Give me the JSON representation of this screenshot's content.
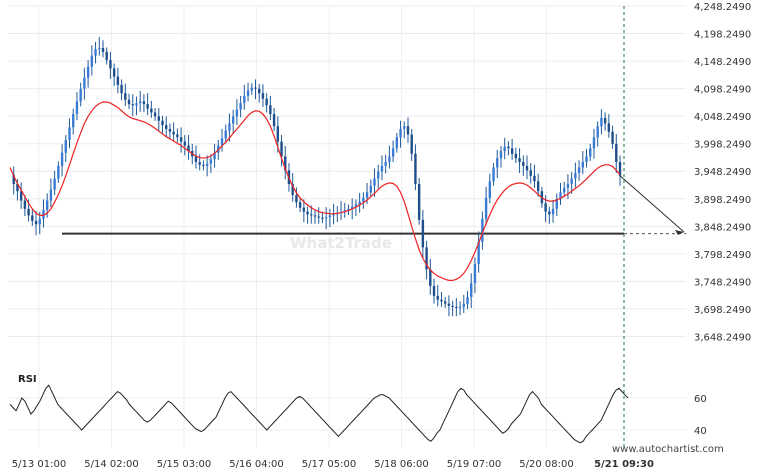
{
  "chart_data": [
    {
      "type": "candlestick",
      "title": "",
      "xlabel": "",
      "ylabel": "",
      "ylim": [
        3618.249,
        4248.249
      ],
      "y_ticks": [
        "4,248.2490",
        "4,198.2490",
        "4,148.2490",
        "4,098.2490",
        "4,048.2490",
        "3,998.2490",
        "3,948.2490",
        "3,898.2490",
        "3,848.2490",
        "3,798.2490",
        "3,748.2490",
        "3,698.2490",
        "3,648.2490"
      ],
      "x_ticks": [
        "5/13 01:00",
        "5/14 02:00",
        "5/15 03:00",
        "5/16 04:00",
        "5/17 05:00",
        "5/18 06:00",
        "5/19 07:00",
        "5/20 08:00"
      ],
      "current_time_label": "5/21 09:30",
      "support_level": 3835,
      "forecast_target": 3838,
      "series": [
        {
          "key": "price",
          "color": "#1f5a99",
          "values": [
            3942,
            3925,
            3912,
            3895,
            3880,
            3868,
            3858,
            3852,
            3862,
            3878,
            3895,
            3915,
            3935,
            3958,
            3982,
            4005,
            4028,
            4052,
            4075,
            4098,
            4118,
            4138,
            4158,
            4170,
            4172,
            4165,
            4150,
            4135,
            4120,
            4105,
            4090,
            4078,
            4070,
            4068,
            4072,
            4075,
            4070,
            4062,
            4055,
            4048,
            4040,
            4032,
            4025,
            4020,
            4015,
            4010,
            4002,
            3995,
            3985,
            3975,
            3965,
            3960,
            3958,
            3962,
            3970,
            3982,
            3995,
            4008,
            4022,
            4035,
            4048,
            4060,
            4072,
            4085,
            4095,
            4100,
            4098,
            4090,
            4080,
            4068,
            4052,
            4030,
            4002,
            3975,
            3950,
            3925,
            3905,
            3892,
            3882,
            3875,
            3870,
            3868,
            3866,
            3864,
            3863,
            3865,
            3868,
            3870,
            3872,
            3874,
            3877,
            3880,
            3884,
            3888,
            3893,
            3900,
            3910,
            3922,
            3935,
            3948,
            3958,
            3965,
            3975,
            3990,
            4010,
            4025,
            4030,
            4015,
            3980,
            3925,
            3860,
            3810,
            3770,
            3740,
            3722,
            3715,
            3712,
            3708,
            3704,
            3702,
            3700,
            3702,
            3707,
            3720,
            3745,
            3780,
            3820,
            3862,
            3900,
            3930,
            3955,
            3972,
            3985,
            3993,
            3990,
            3980,
            3972,
            3965,
            3958,
            3950,
            3940,
            3930,
            3912,
            3890,
            3875,
            3870,
            3880,
            3898,
            3910,
            3918,
            3925,
            3935,
            3945,
            3955,
            3965,
            3975,
            3990,
            4010,
            4030,
            4045,
            4035,
            4020,
            3998,
            3965,
            3940
          ]
        },
        {
          "key": "moving_average",
          "color": "#ee2222",
          "values": [
            3955,
            3940,
            3926,
            3914,
            3902,
            3890,
            3880,
            3872,
            3868,
            3868,
            3872,
            3880,
            3892,
            3906,
            3922,
            3940,
            3960,
            3980,
            4000,
            4018,
            4035,
            4048,
            4058,
            4066,
            4071,
            4074,
            4074,
            4072,
            4068,
            4064,
            4058,
            4052,
            4047,
            4044,
            4042,
            4040,
            4038,
            4035,
            4031,
            4026,
            4021,
            4016,
            4011,
            4007,
            4003,
            3999,
            3995,
            3990,
            3985,
            3980,
            3976,
            3973,
            3972,
            3973,
            3976,
            3981,
            3987,
            3994,
            4001,
            4009,
            4017,
            4025,
            4033,
            4041,
            4049,
            4055,
            4058,
            4057,
            4052,
            4043,
            4030,
            4012,
            3992,
            3972,
            3953,
            3936,
            3921,
            3909,
            3900,
            3893,
            3887,
            3882,
            3878,
            3875,
            3873,
            3872,
            3871,
            3871,
            3872,
            3873,
            3875,
            3877,
            3880,
            3883,
            3887,
            3891,
            3896,
            3902,
            3908,
            3915,
            3921,
            3925,
            3927,
            3926,
            3921,
            3910,
            3893,
            3871,
            3848,
            3826,
            3806,
            3790,
            3778,
            3769,
            3763,
            3758,
            3755,
            3752,
            3750,
            3750,
            3752,
            3756,
            3763,
            3773,
            3786,
            3801,
            3818,
            3836,
            3853,
            3869,
            3884,
            3896,
            3906,
            3914,
            3920,
            3924,
            3926,
            3927,
            3926,
            3923,
            3918,
            3912,
            3906,
            3900,
            3896,
            3894,
            3894,
            3896,
            3899,
            3903,
            3907,
            3912,
            3917,
            3922,
            3928,
            3934,
            3941,
            3948,
            3954,
            3958,
            3960,
            3960,
            3957,
            3950,
            3942
          ]
        }
      ]
    },
    {
      "type": "line",
      "title": "RSI",
      "ylim": [
        30,
        70
      ],
      "y_ticks": [
        "60",
        "40"
      ],
      "series": [
        {
          "key": "rsi",
          "color": "#222222",
          "values": [
            56,
            54,
            52,
            56,
            60,
            58,
            54,
            50,
            52,
            55,
            58,
            62,
            66,
            68,
            64,
            60,
            56,
            54,
            52,
            50,
            48,
            46,
            44,
            42,
            40,
            42,
            44,
            46,
            48,
            50,
            52,
            54,
            56,
            58,
            60,
            62,
            64,
            63,
            61,
            59,
            56,
            54,
            52,
            50,
            48,
            46,
            45,
            46,
            48,
            50,
            52,
            54,
            56,
            58,
            57,
            55,
            53,
            51,
            49,
            47,
            45,
            43,
            41,
            40,
            39,
            40,
            42,
            44,
            46,
            48,
            52,
            56,
            60,
            63,
            64,
            62,
            60,
            58,
            56,
            54,
            52,
            50,
            48,
            46,
            44,
            42,
            40,
            42,
            44,
            46,
            48,
            50,
            52,
            54,
            56,
            58,
            60,
            61,
            60,
            58,
            56,
            54,
            52,
            50,
            48,
            46,
            44,
            42,
            40,
            38,
            36,
            38,
            40,
            42,
            44,
            46,
            48,
            50,
            52,
            54,
            56,
            58,
            60,
            61,
            62,
            62,
            61,
            60,
            58,
            56,
            54,
            52,
            50,
            48,
            46,
            44,
            42,
            40,
            38,
            36,
            34,
            33,
            35,
            38,
            40,
            44,
            48,
            52,
            56,
            60,
            64,
            66,
            65,
            62,
            60,
            58,
            56,
            54,
            52,
            50,
            48,
            46,
            44,
            42,
            40,
            38,
            39,
            41,
            44,
            46,
            48,
            50,
            54,
            58,
            62,
            64,
            62,
            60,
            56,
            54,
            52,
            50,
            48,
            46,
            44,
            42,
            40,
            38,
            36,
            34,
            33,
            32,
            33,
            36,
            38,
            40,
            42,
            44,
            46,
            50,
            54,
            58,
            62,
            65,
            66,
            64,
            62,
            60
          ]
        }
      ]
    }
  ],
  "watermark": "What2Trade",
  "credit": "www.autochartist.com"
}
